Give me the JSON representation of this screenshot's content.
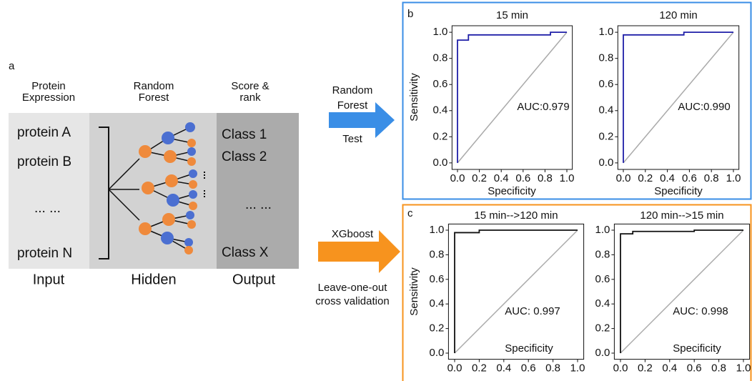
{
  "diagram": {
    "panel_label": "a",
    "columns": [
      {
        "header": [
          "Protein",
          "Expression"
        ],
        "items": [
          "protein A",
          "protein B",
          "... ...",
          "protein N"
        ],
        "footer": "Input"
      },
      {
        "header": [
          "Random",
          "Forest"
        ],
        "footer": "Hidden"
      },
      {
        "header": [
          "Score &",
          "rank"
        ],
        "items": [
          "Class 1",
          "Class 2",
          "... ...",
          "Class X"
        ],
        "footer": "Output"
      }
    ],
    "arrow_top": [
      "Random",
      "Forest",
      "Test"
    ],
    "arrow_bottom": [
      "XGboost",
      "Leave-one-out",
      "cross validation"
    ],
    "panel_b": "b",
    "panel_c": "c"
  },
  "chart_data": [
    {
      "type": "line",
      "title": "15 min",
      "xlabel": "Specificity",
      "ylabel": "Sensitivity",
      "annotation": "AUC:0.979",
      "xlim": [
        -0.05,
        1.05
      ],
      "ylim": [
        -0.05,
        1.05
      ],
      "xticks": [
        {
          "value": 0,
          "label": "0.0"
        },
        0.2,
        0.4,
        0.6,
        0.8,
        {
          "value": 1,
          "label": "1.0"
        }
      ],
      "yticks": [
        {
          "value": 0,
          "label": "0.0"
        },
        0.2,
        0.4,
        0.6,
        0.8,
        {
          "value": 1,
          "label": "1.0"
        }
      ],
      "series": [
        {
          "color": "#1f1fa8",
          "x": [
            0,
            0,
            0.1,
            0.1,
            0.85,
            0.85,
            1
          ],
          "values": [
            0,
            0.94,
            0.94,
            0.98,
            0.98,
            1,
            1
          ]
        },
        {
          "color": "#aaaaaa",
          "x": [
            0,
            1
          ],
          "values": [
            0,
            1
          ]
        }
      ]
    },
    {
      "type": "line",
      "title": "120 min",
      "xlabel": "Specificity",
      "annotation": "AUC:0.990",
      "xlim": [
        -0.05,
        1.05
      ],
      "ylim": [
        -0.05,
        1.05
      ],
      "xticks": [
        {
          "value": 0,
          "label": "0.0"
        },
        0.2,
        0.4,
        0.6,
        0.8,
        {
          "value": 1,
          "label": "1.0"
        }
      ],
      "yticks": [
        {
          "value": 0,
          "label": "0.0"
        },
        0.2,
        0.4,
        0.6,
        0.8,
        {
          "value": 1,
          "label": "1.0"
        }
      ],
      "series": [
        {
          "color": "#1f1fa8",
          "x": [
            0,
            0,
            0.55,
            0.55,
            1
          ],
          "values": [
            0,
            0.98,
            0.98,
            1,
            1
          ]
        },
        {
          "color": "#aaaaaa",
          "x": [
            0,
            1
          ],
          "values": [
            0,
            1
          ]
        }
      ]
    },
    {
      "type": "line",
      "title": "15 min-->120 min",
      "xlabel": "Specificity",
      "ylabel": "Sensitivity",
      "annotation": "AUC: 0.997",
      "xlim": [
        -0.05,
        1.05
      ],
      "ylim": [
        -0.05,
        1.05
      ],
      "xticks": [
        {
          "value": 0,
          "label": "0.0"
        },
        0.2,
        0.4,
        0.6,
        0.8,
        {
          "value": 1,
          "label": "1.0"
        }
      ],
      "yticks": [
        {
          "value": 0,
          "label": "0.0"
        },
        0.2,
        0.4,
        0.6,
        0.8,
        {
          "value": 1,
          "label": "1.0"
        }
      ],
      "series": [
        {
          "color": "#111111",
          "x": [
            0,
            0,
            0.2,
            0.2,
            1
          ],
          "values": [
            0,
            0.98,
            0.98,
            1,
            1
          ]
        },
        {
          "color": "#aaaaaa",
          "x": [
            0,
            1
          ],
          "values": [
            0,
            1
          ]
        }
      ]
    },
    {
      "type": "line",
      "title": "120 min-->15 min",
      "xlabel": "Specificity",
      "annotation": "AUC: 0.998",
      "xlim": [
        -0.05,
        1.05
      ],
      "ylim": [
        -0.05,
        1.05
      ],
      "xticks": [
        {
          "value": 0,
          "label": "0.0"
        },
        0.2,
        0.4,
        0.6,
        0.8,
        {
          "value": 1,
          "label": "1.0"
        }
      ],
      "yticks": [
        {
          "value": 0,
          "label": "0.0"
        },
        0.2,
        0.4,
        0.6,
        0.8,
        {
          "value": 1,
          "label": "1.0"
        }
      ],
      "series": [
        {
          "color": "#111111",
          "x": [
            0,
            0,
            0.1,
            0.1,
            0.6,
            0.6,
            1
          ],
          "values": [
            0,
            0.97,
            0.97,
            0.99,
            0.99,
            1,
            1
          ]
        },
        {
          "color": "#aaaaaa",
          "x": [
            0,
            1
          ],
          "values": [
            0,
            1
          ]
        }
      ]
    }
  ]
}
